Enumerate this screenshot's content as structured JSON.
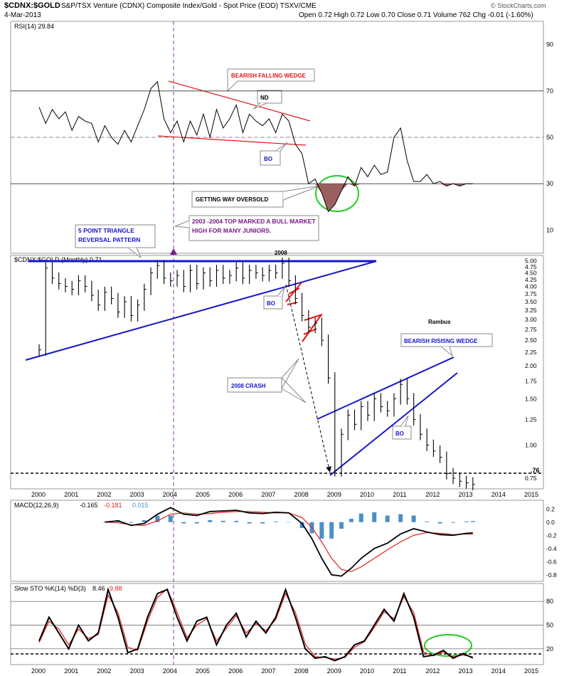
{
  "header": {
    "symbol": "$CDNX:$GOLD",
    "description": "S&P/TSX Venture (CDNX) Composite Index/Gold - Spot Price (EOD)  TSXV/CME",
    "date": "4-Mar-2013",
    "quote": "Open 0.72  High 0.72  Low 0.70  Close 0.71  Volume 762  Chg -0.01 (-1.60%)",
    "credit": "© StockCharts.com"
  },
  "chart_data": [
    {
      "type": "line",
      "panel": "rsi",
      "label": "RSI(14) 29.84",
      "ylim": [
        0,
        100
      ],
      "ticks": [
        10,
        30,
        50,
        70,
        90
      ],
      "x": [
        2000.0,
        2000.2,
        2000.4,
        2000.6,
        2000.8,
        2001.0,
        2001.2,
        2001.4,
        2001.6,
        2001.8,
        2002.0,
        2002.2,
        2002.4,
        2002.6,
        2002.8,
        2003.0,
        2003.2,
        2003.4,
        2003.6,
        2003.8,
        2004.0,
        2004.2,
        2004.4,
        2004.6,
        2004.8,
        2005.0,
        2005.2,
        2005.4,
        2005.6,
        2005.8,
        2006.0,
        2006.2,
        2006.4,
        2006.6,
        2006.8,
        2007.0,
        2007.2,
        2007.4,
        2007.6,
        2007.8,
        2008.0,
        2008.2,
        2008.4,
        2008.6,
        2008.8,
        2009.0,
        2009.2,
        2009.4,
        2009.6,
        2009.8,
        2010.0,
        2010.2,
        2010.4,
        2010.6,
        2010.8,
        2011.0,
        2011.2,
        2011.4,
        2011.6,
        2011.8,
        2012.0,
        2012.2,
        2012.4,
        2012.6,
        2012.8,
        2013.0,
        2013.2
      ],
      "values": [
        63,
        56,
        62,
        58,
        61,
        53,
        59,
        57,
        56,
        48,
        55,
        50,
        47,
        53,
        48,
        55,
        62,
        71,
        74,
        58,
        52,
        57,
        48,
        57,
        51,
        60,
        50,
        62,
        54,
        58,
        64,
        52,
        60,
        57,
        55,
        58,
        52,
        60,
        57,
        47,
        43,
        30,
        32,
        26,
        18,
        21,
        27,
        33,
        29,
        37,
        33,
        38,
        34,
        35,
        50,
        54,
        40,
        31,
        31,
        34,
        30,
        31,
        29,
        30,
        29,
        30,
        30
      ],
      "annotations": [
        "BEARISH FALLING WEDGE",
        "ND",
        "BO",
        "GETTING WAY OVERSOLD",
        "2003 -2004 TOP MARKED A BULL MARKET HIGH FOR MANY JUNIORS."
      ]
    },
    {
      "type": "ohlc",
      "panel": "price",
      "label": "$CDNX:$GOLD (Monthly) 0.71",
      "ylim": [
        0.7,
        5.05
      ],
      "log_scale": true,
      "ticks": [
        0.75,
        1.0,
        1.25,
        1.5,
        1.75,
        2.0,
        2.25,
        2.5,
        2.75,
        3.0,
        3.25,
        3.5,
        3.75,
        4.0,
        4.25,
        4.5,
        4.75,
        5.0
      ],
      "x": [
        2000.0,
        2000.2,
        2000.4,
        2000.6,
        2000.8,
        2001.0,
        2001.2,
        2001.4,
        2001.6,
        2001.8,
        2002.0,
        2002.2,
        2002.4,
        2002.6,
        2002.8,
        2003.0,
        2003.2,
        2003.4,
        2003.6,
        2003.8,
        2004.0,
        2004.2,
        2004.4,
        2004.6,
        2004.8,
        2005.0,
        2005.2,
        2005.4,
        2005.6,
        2005.8,
        2006.0,
        2006.2,
        2006.4,
        2006.6,
        2006.8,
        2007.0,
        2007.2,
        2007.4,
        2007.6,
        2007.8,
        2008.0,
        2008.2,
        2008.4,
        2008.6,
        2008.8,
        2009.0,
        2009.2,
        2009.4,
        2009.6,
        2009.8,
        2010.0,
        2010.2,
        2010.4,
        2010.6,
        2010.8,
        2011.0,
        2011.2,
        2011.4,
        2011.6,
        2011.8,
        2012.0,
        2012.2,
        2012.4,
        2012.6,
        2012.8,
        2013.0,
        2013.2
      ],
      "values": [
        2.3,
        4.7,
        4.3,
        4.1,
        4.0,
        3.9,
        4.2,
        4.0,
        3.7,
        3.4,
        3.8,
        3.6,
        3.2,
        3.5,
        3.1,
        3.4,
        3.9,
        4.5,
        4.8,
        4.3,
        4.2,
        4.4,
        4.0,
        4.6,
        4.1,
        4.5,
        4.2,
        4.6,
        4.3,
        4.4,
        4.7,
        4.3,
        4.6,
        4.5,
        4.4,
        4.6,
        4.5,
        4.9,
        4.2,
        3.6,
        3.1,
        2.8,
        2.9,
        2.5,
        1.8,
        0.8,
        1.1,
        1.3,
        1.2,
        1.4,
        1.3,
        1.5,
        1.4,
        1.35,
        1.5,
        1.7,
        1.5,
        1.25,
        1.1,
        1.0,
        0.95,
        0.9,
        0.78,
        0.75,
        0.73,
        0.72,
        0.71
      ],
      "support_level": ".76",
      "annotations": [
        "5 POINT TRIANGLE REVERSAL PATTERN",
        "2008",
        "BO",
        "2008 CRASH",
        "Rambus",
        "BEARISH RISISNG WEDGE",
        "BO"
      ],
      "xticks": [
        "2000",
        "2001",
        "2002",
        "2003",
        "2004",
        "2005",
        "2006",
        "2007",
        "2008",
        "2009",
        "2010",
        "2011",
        "2012",
        "2013",
        "2014",
        "2015"
      ]
    },
    {
      "type": "line",
      "panel": "macd",
      "label": "MACD(12,26,9)",
      "label_values": [
        "-0.165",
        "-0.181",
        "0.015"
      ],
      "ylim": [
        -0.9,
        0.3
      ],
      "ticks": [
        0.2,
        0.0,
        -0.2,
        -0.4,
        -0.6,
        -0.8
      ],
      "x": [
        2002.0,
        2002.4,
        2002.8,
        2003.2,
        2003.6,
        2004.0,
        2004.4,
        2004.8,
        2005.2,
        2005.6,
        2006.0,
        2006.4,
        2006.8,
        2007.2,
        2007.6,
        2008.0,
        2008.3,
        2008.6,
        2008.9,
        2009.2,
        2009.5,
        2009.8,
        2010.2,
        2010.6,
        2011.0,
        2011.4,
        2011.8,
        2012.2,
        2012.6,
        2013.0,
        2013.2
      ],
      "series": [
        {
          "name": "MACD",
          "color": "#000000",
          "values": [
            0.0,
            0.02,
            -0.05,
            -0.02,
            0.12,
            0.22,
            0.12,
            0.1,
            0.16,
            0.17,
            0.18,
            0.14,
            0.13,
            0.15,
            0.14,
            -0.02,
            -0.25,
            -0.55,
            -0.8,
            -0.82,
            -0.7,
            -0.55,
            -0.4,
            -0.32,
            -0.18,
            -0.1,
            -0.15,
            -0.19,
            -0.2,
            -0.17,
            -0.165
          ]
        },
        {
          "name": "Signal",
          "color": "#e02020",
          "values": [
            0.0,
            -0.01,
            -0.04,
            -0.05,
            0.02,
            0.12,
            0.14,
            0.12,
            0.13,
            0.15,
            0.16,
            0.16,
            0.15,
            0.14,
            0.14,
            0.07,
            -0.08,
            -0.3,
            -0.55,
            -0.72,
            -0.75,
            -0.68,
            -0.55,
            -0.42,
            -0.3,
            -0.2,
            -0.16,
            -0.17,
            -0.19,
            -0.18,
            -0.181
          ]
        },
        {
          "name": "Histogram",
          "color": "#4a90c8",
          "values": [
            0.0,
            0.03,
            -0.01,
            0.03,
            0.1,
            0.1,
            -0.02,
            -0.02,
            0.03,
            0.02,
            0.02,
            -0.02,
            -0.02,
            0.01,
            0.0,
            -0.09,
            -0.17,
            -0.25,
            -0.25,
            -0.1,
            0.05,
            0.13,
            0.15,
            0.1,
            0.12,
            0.1,
            0.01,
            -0.02,
            -0.01,
            0.01,
            0.015
          ]
        }
      ]
    },
    {
      "type": "line",
      "panel": "stochastic",
      "label": "Slow STO %K(14) %D(3)",
      "label_values": [
        "8.46",
        "9.88"
      ],
      "ylim": [
        0,
        100
      ],
      "ticks": [
        20,
        50,
        80
      ],
      "x": [
        2000.0,
        2000.3,
        2000.6,
        2000.9,
        2001.2,
        2001.5,
        2001.8,
        2002.1,
        2002.4,
        2002.7,
        2003.0,
        2003.3,
        2003.6,
        2003.9,
        2004.2,
        2004.5,
        2004.8,
        2005.1,
        2005.4,
        2005.7,
        2006.0,
        2006.3,
        2006.6,
        2006.9,
        2007.2,
        2007.5,
        2007.8,
        2008.1,
        2008.4,
        2008.7,
        2009.0,
        2009.3,
        2009.6,
        2009.9,
        2010.2,
        2010.5,
        2010.8,
        2011.1,
        2011.4,
        2011.7,
        2012.0,
        2012.3,
        2012.6,
        2012.9,
        2013.2
      ],
      "series": [
        {
          "name": "%K",
          "color": "#000000",
          "values": [
            30,
            60,
            40,
            20,
            50,
            30,
            40,
            95,
            60,
            15,
            20,
            60,
            90,
            95,
            60,
            30,
            55,
            60,
            25,
            50,
            65,
            35,
            55,
            40,
            60,
            95,
            60,
            20,
            8,
            10,
            5,
            10,
            25,
            30,
            50,
            70,
            55,
            90,
            60,
            10,
            12,
            18,
            8,
            14,
            8.46
          ]
        },
        {
          "name": "%D",
          "color": "#e02020",
          "values": [
            28,
            55,
            45,
            25,
            45,
            33,
            38,
            88,
            66,
            22,
            18,
            55,
            85,
            96,
            66,
            34,
            50,
            58,
            30,
            46,
            62,
            40,
            52,
            43,
            57,
            90,
            66,
            26,
            10,
            9,
            7,
            9,
            22,
            29,
            47,
            67,
            58,
            86,
            66,
            16,
            11,
            16,
            10,
            12,
            9.88
          ]
        }
      ],
      "xticks": [
        "2000",
        "2001",
        "2002",
        "2003",
        "2004",
        "2005",
        "2006",
        "2007",
        "2008",
        "2009",
        "2010",
        "2011",
        "2012",
        "2013",
        "2014",
        "2015"
      ]
    }
  ],
  "colors": {
    "trendline_blue": "#1616c8",
    "wedge_red": "#e01818",
    "highlight_purple": "#7a1a8a",
    "oversold_fill": "#9a6060",
    "ellipse_green": "#22cc22",
    "macd_hist": "#4a90c8"
  }
}
